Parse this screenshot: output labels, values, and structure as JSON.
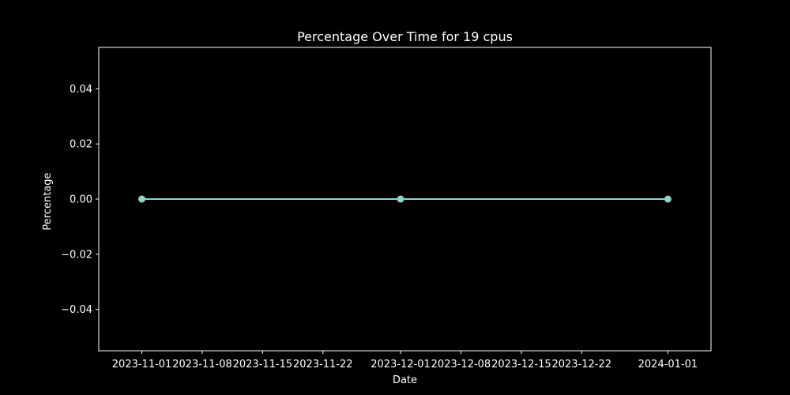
{
  "chart_data": {
    "type": "line",
    "title": "Percentage Over Time for 19 cpus",
    "xlabel": "Date",
    "ylabel": "Percentage",
    "x": [
      "2023-11-01",
      "2023-12-01",
      "2024-01-01"
    ],
    "series": [
      {
        "values": [
          0.0,
          0.0,
          0.0
        ],
        "color": "#8dd3c7",
        "marker": "circle"
      }
    ],
    "xlim": [
      "2023-10-27",
      "2024-01-06"
    ],
    "ylim": [
      -0.055,
      0.055
    ],
    "x_ticks": [
      "2023-11-01",
      "2023-11-08",
      "2023-11-15",
      "2023-11-22",
      "2023-12-01",
      "2023-12-08",
      "2023-12-15",
      "2023-12-22",
      "2024-01-01"
    ],
    "y_ticks": [
      -0.04,
      -0.02,
      0.0,
      0.02,
      0.04
    ],
    "y_tick_labels": [
      "−0.04",
      "−0.02",
      "0.00",
      "0.02",
      "0.04"
    ],
    "grid": false,
    "legend": "none",
    "background": "#000000",
    "foreground": "#ffffff"
  }
}
